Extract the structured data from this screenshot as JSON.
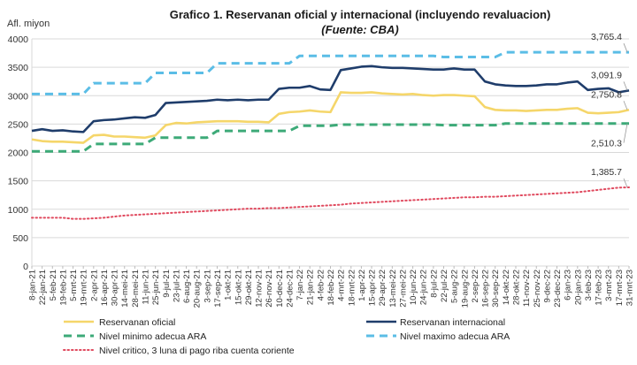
{
  "chart_data": {
    "type": "line",
    "title": "Grafico 1. Reservanan oficial y internacional (incluyendo revaluacion)",
    "subtitle": "(Fuente: CBA)",
    "ylabel": "Afl. miyon",
    "ylim": [
      0,
      4000
    ],
    "yticks": [
      0,
      500,
      1000,
      1500,
      2000,
      2500,
      3000,
      3500,
      4000
    ],
    "grid": true,
    "categories": [
      "8-jan-21",
      "22-jan-21",
      "5-feb-21",
      "19-feb-21",
      "5-mrt-21",
      "19-mrt-21",
      "2-apr-21",
      "16-apr-21",
      "30-apr-21",
      "14-mei-21",
      "28-mei-21",
      "11-jun-21",
      "25-jun-21",
      "9-jul-21",
      "23-jul-21",
      "6-aug-21",
      "20-aug-21",
      "3-sep-21",
      "17-sep-21",
      "1-okt-21",
      "15-okt-21",
      "29-okt-21",
      "12-nov-21",
      "26-nov-21",
      "10-dec-21",
      "24-dec-21",
      "7-jan-22",
      "21-jan-22",
      "4-feb-22",
      "18-feb-22",
      "4-mrt-22",
      "18-mrt-22",
      "1-apr-22",
      "15-apr-22",
      "29-apr-22",
      "13-mei-22",
      "27-mei-22",
      "10-jun-22",
      "24-jun-22",
      "8-jul-22",
      "22-jul-22",
      "5-aug-22",
      "19-aug-22",
      "2-sep-22",
      "16-sep-22",
      "30-sep-22",
      "14-okt-22",
      "28-okt-22",
      "11-nov-22",
      "25-nov-22",
      "9-dec-22",
      "23-dec-22",
      "6-jan-23",
      "20-jan-23",
      "3-feb-23",
      "17-feb-23",
      "3-mrt-23",
      "17-mrt-23",
      "31-mrt-23"
    ],
    "series": [
      {
        "name": "Reservanan oficial",
        "color": "#f5d66a",
        "style": "solid",
        "values": [
          2230,
          2200,
          2190,
          2190,
          2180,
          2170,
          2300,
          2310,
          2280,
          2280,
          2270,
          2260,
          2300,
          2480,
          2520,
          2510,
          2530,
          2540,
          2550,
          2550,
          2550,
          2540,
          2540,
          2530,
          2680,
          2710,
          2720,
          2740,
          2720,
          2710,
          3060,
          3050,
          3050,
          3060,
          3040,
          3030,
          3020,
          3030,
          3010,
          3000,
          3010,
          3010,
          3000,
          2990,
          2800,
          2750,
          2740,
          2740,
          2730,
          2740,
          2750,
          2750,
          2770,
          2780,
          2700,
          2690,
          2700,
          2710,
          2750.8
        ]
      },
      {
        "name": "Reservanan internacional",
        "color": "#1f3d6b",
        "style": "solid",
        "values": [
          2380,
          2410,
          2380,
          2390,
          2370,
          2360,
          2550,
          2570,
          2580,
          2600,
          2620,
          2610,
          2660,
          2870,
          2880,
          2890,
          2900,
          2910,
          2930,
          2920,
          2930,
          2920,
          2930,
          2930,
          3120,
          3140,
          3140,
          3170,
          3110,
          3100,
          3450,
          3480,
          3510,
          3520,
          3500,
          3490,
          3490,
          3480,
          3470,
          3460,
          3460,
          3480,
          3460,
          3460,
          3250,
          3200,
          3180,
          3170,
          3170,
          3180,
          3200,
          3200,
          3230,
          3250,
          3100,
          3120,
          3130,
          3060,
          3091.9
        ]
      },
      {
        "name": "Nivel minimo adecua ARA",
        "color": "#3daa78",
        "style": "dashed",
        "values": [
          2020,
          2020,
          2020,
          2020,
          2020,
          2020,
          2150,
          2150,
          2150,
          2150,
          2150,
          2150,
          2260,
          2260,
          2260,
          2260,
          2260,
          2260,
          2380,
          2380,
          2380,
          2380,
          2380,
          2380,
          2380,
          2380,
          2470,
          2470,
          2470,
          2470,
          2490,
          2490,
          2490,
          2490,
          2490,
          2490,
          2490,
          2490,
          2490,
          2490,
          2480,
          2480,
          2480,
          2480,
          2480,
          2480,
          2510,
          2510,
          2510,
          2510,
          2510,
          2510,
          2510,
          2510,
          2510,
          2510,
          2510,
          2510,
          2510.3
        ]
      },
      {
        "name": "Nivel maximo adecua ARA",
        "color": "#5bbde6",
        "style": "dashed",
        "values": [
          3030,
          3030,
          3030,
          3030,
          3030,
          3030,
          3220,
          3220,
          3220,
          3220,
          3220,
          3220,
          3400,
          3400,
          3400,
          3400,
          3400,
          3400,
          3570,
          3570,
          3570,
          3570,
          3570,
          3570,
          3570,
          3570,
          3700,
          3700,
          3700,
          3700,
          3700,
          3700,
          3700,
          3700,
          3700,
          3700,
          3700,
          3700,
          3700,
          3700,
          3680,
          3680,
          3680,
          3680,
          3680,
          3680,
          3765,
          3765,
          3765,
          3765,
          3765,
          3765,
          3765,
          3765,
          3765,
          3765,
          3765,
          3765,
          3765.4
        ]
      },
      {
        "name": "Nivel critico, 3 luna di pago riba cuenta coriente",
        "color": "#e04a5f",
        "style": "dotted",
        "values": [
          850,
          850,
          850,
          850,
          830,
          830,
          840,
          850,
          870,
          890,
          900,
          910,
          920,
          930,
          940,
          950,
          960,
          970,
          980,
          990,
          1000,
          1010,
          1010,
          1020,
          1020,
          1030,
          1040,
          1050,
          1060,
          1070,
          1080,
          1100,
          1110,
          1120,
          1130,
          1140,
          1150,
          1160,
          1170,
          1180,
          1190,
          1200,
          1210,
          1210,
          1220,
          1220,
          1230,
          1240,
          1250,
          1260,
          1270,
          1280,
          1290,
          1300,
          1320,
          1340,
          1360,
          1380,
          1385.7
        ]
      }
    ],
    "data_labels": [
      {
        "series": 3,
        "text": "3,765.4"
      },
      {
        "series": 1,
        "text": "3,091.9"
      },
      {
        "series": 0,
        "text": "2,750.8"
      },
      {
        "series": 2,
        "text": "2,510.3"
      },
      {
        "series": 4,
        "text": "1,385.7"
      }
    ],
    "legend": {
      "placement": "bottom",
      "entries": [
        "Reservanan oficial",
        "Reservanan internacional",
        "Nivel minimo adecua ARA",
        "Nivel maximo adecua ARA",
        "Nivel critico, 3 luna di pago riba cuenta coriente"
      ]
    }
  }
}
